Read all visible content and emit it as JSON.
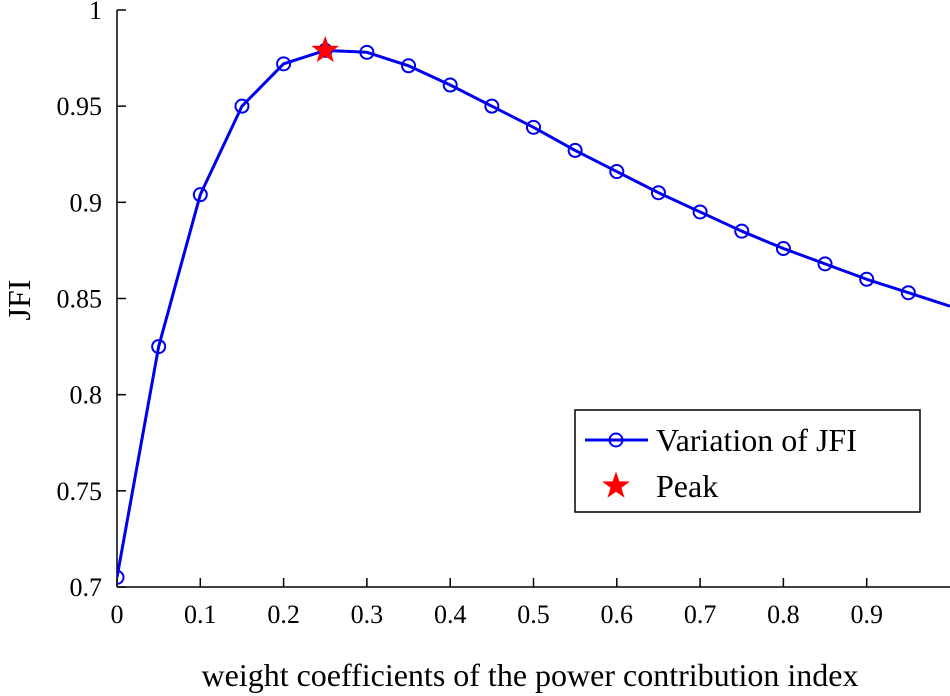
{
  "chart_data": {
    "type": "line",
    "title": "",
    "xlabel": "weight coefficients of the power contribution index",
    "ylabel": "JFI",
    "xlim": [
      0,
      1
    ],
    "ylim": [
      0.7,
      1
    ],
    "xticks": [
      "0",
      "0.1",
      "0.2",
      "0.3",
      "0.4",
      "0.5",
      "0.6",
      "0.7",
      "0.8",
      "0.9"
    ],
    "yticks": [
      "0.7",
      "0.75",
      "0.8",
      "0.85",
      "0.9",
      "0.95",
      "1"
    ],
    "grid": false,
    "legend_position": "lower-right",
    "series": [
      {
        "name": "Variation of JFI",
        "color": "#0000ee",
        "marker": "circle",
        "x": [
          0,
          0.05,
          0.1,
          0.15,
          0.2,
          0.25,
          0.3,
          0.35,
          0.4,
          0.45,
          0.5,
          0.55,
          0.6,
          0.65,
          0.7,
          0.75,
          0.8,
          0.85,
          0.9,
          0.95,
          1.0
        ],
        "y": [
          0.705,
          0.825,
          0.904,
          0.95,
          0.972,
          0.979,
          0.978,
          0.971,
          0.961,
          0.95,
          0.939,
          0.927,
          0.916,
          0.905,
          0.895,
          0.885,
          0.876,
          0.868,
          0.86,
          0.853,
          0.846
        ]
      },
      {
        "name": "Peak",
        "color": "#ff0000",
        "marker": "star",
        "x": [
          0.25
        ],
        "y": [
          0.979
        ]
      }
    ]
  }
}
